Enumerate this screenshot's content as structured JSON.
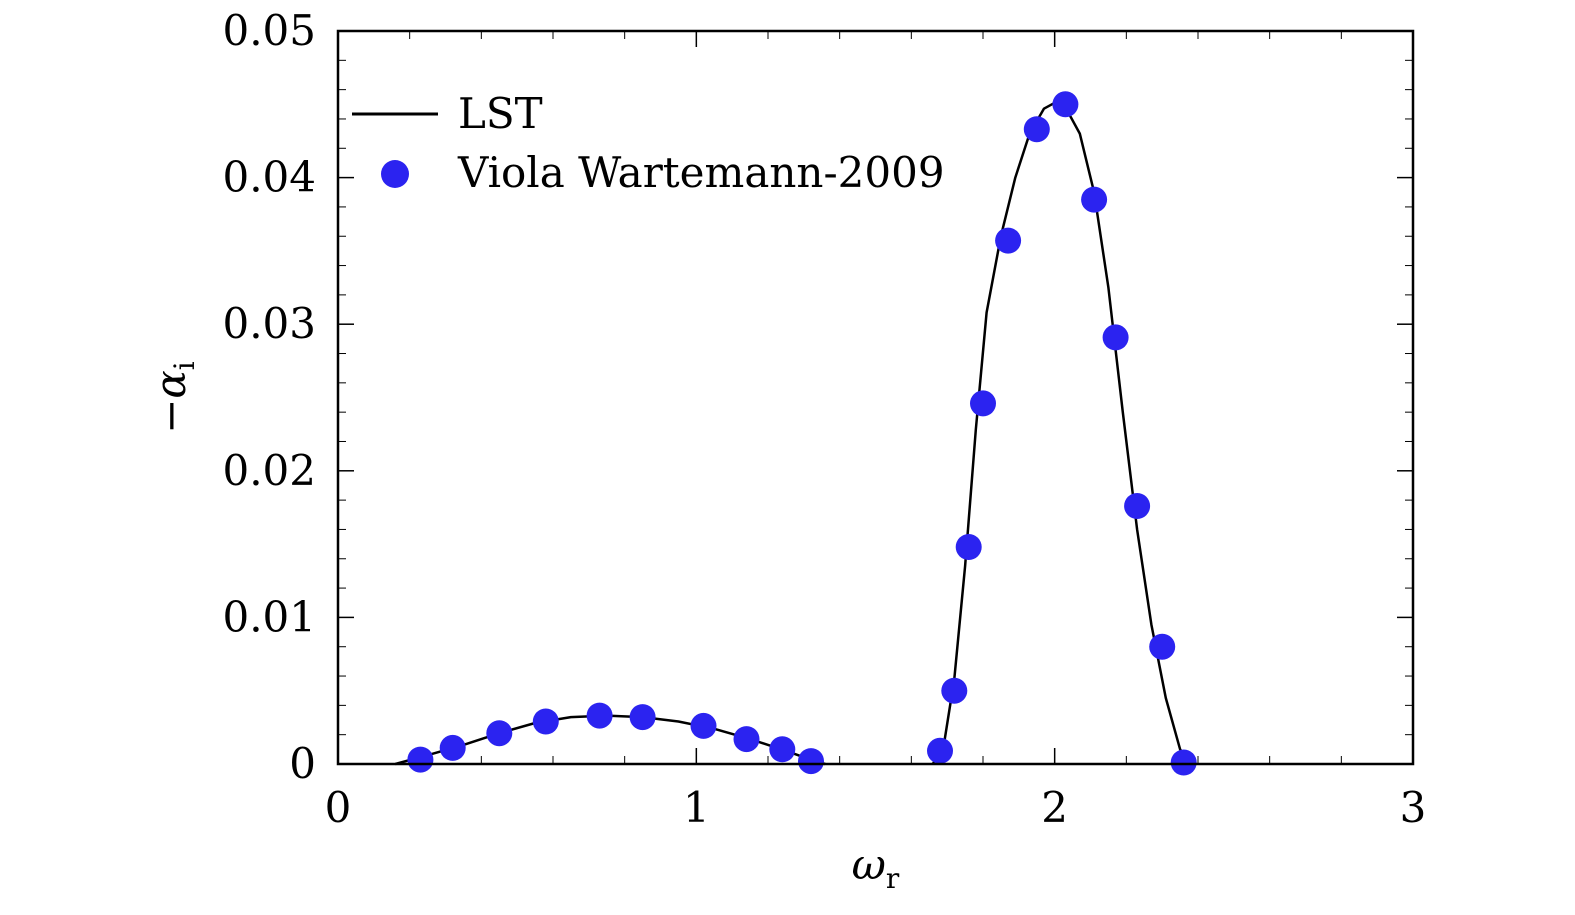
{
  "chart_data": {
    "type": "scatter",
    "xlabel": "ω",
    "xlabel_sub": "r",
    "ylabel_prefix": "−",
    "ylabel": "α",
    "ylabel_sub": "i",
    "xlim": [
      0,
      3
    ],
    "ylim": [
      0,
      0.05
    ],
    "x_ticks": [
      0,
      1,
      2,
      3
    ],
    "x_tick_labels": [
      "0",
      "1",
      "2",
      "3"
    ],
    "y_ticks": [
      0,
      0.01,
      0.02,
      0.03,
      0.04,
      0.05
    ],
    "y_tick_labels": [
      "0",
      "0.01",
      "0.02",
      "0.03",
      "0.04",
      "0.05"
    ],
    "grid": false,
    "legend_position": "top-left",
    "series": [
      {
        "name": "LST",
        "kind": "line",
        "color": "#000000",
        "segments": [
          [
            [
              0.16,
              0.0
            ],
            [
              0.25,
              0.0006
            ],
            [
              0.35,
              0.0013
            ],
            [
              0.45,
              0.0021
            ],
            [
              0.55,
              0.0028
            ],
            [
              0.65,
              0.0032
            ],
            [
              0.75,
              0.0033
            ],
            [
              0.85,
              0.0032
            ],
            [
              0.95,
              0.0029
            ],
            [
              1.05,
              0.0024
            ],
            [
              1.15,
              0.0017
            ],
            [
              1.25,
              0.0009
            ],
            [
              1.33,
              0.0002
            ],
            [
              1.36,
              0.0
            ]
          ],
          [
            [
              1.66,
              0.0
            ],
            [
              1.69,
              0.0012
            ],
            [
              1.72,
              0.0058
            ],
            [
              1.75,
              0.0135
            ],
            [
              1.78,
              0.0228
            ],
            [
              1.81,
              0.0308
            ],
            [
              1.85,
              0.036
            ],
            [
              1.89,
              0.04
            ],
            [
              1.93,
              0.043
            ],
            [
              1.97,
              0.0447
            ],
            [
              2.0,
              0.0451
            ],
            [
              2.03,
              0.0448
            ],
            [
              2.07,
              0.043
            ],
            [
              2.11,
              0.039
            ],
            [
              2.15,
              0.0325
            ],
            [
              2.19,
              0.024
            ],
            [
              2.23,
              0.016
            ],
            [
              2.27,
              0.0095
            ],
            [
              2.31,
              0.0045
            ],
            [
              2.35,
              0.001
            ],
            [
              2.38,
              0.0
            ]
          ]
        ]
      },
      {
        "name": "Viola Wartemann-2009",
        "kind": "scatter",
        "color": "#2b23f0",
        "x": [
          0.23,
          0.32,
          0.45,
          0.58,
          0.73,
          0.85,
          1.02,
          1.14,
          1.24,
          1.32,
          1.68,
          1.72,
          1.76,
          1.8,
          1.87,
          1.95,
          2.03,
          2.11,
          2.17,
          2.23,
          2.3,
          2.36
        ],
        "y": [
          0.0003,
          0.0011,
          0.0021,
          0.0029,
          0.0033,
          0.0032,
          0.0026,
          0.0017,
          0.001,
          0.0002,
          0.0009,
          0.005,
          0.0148,
          0.0246,
          0.0357,
          0.0433,
          0.045,
          0.0385,
          0.0291,
          0.0176,
          0.008,
          0.0001
        ]
      }
    ]
  }
}
